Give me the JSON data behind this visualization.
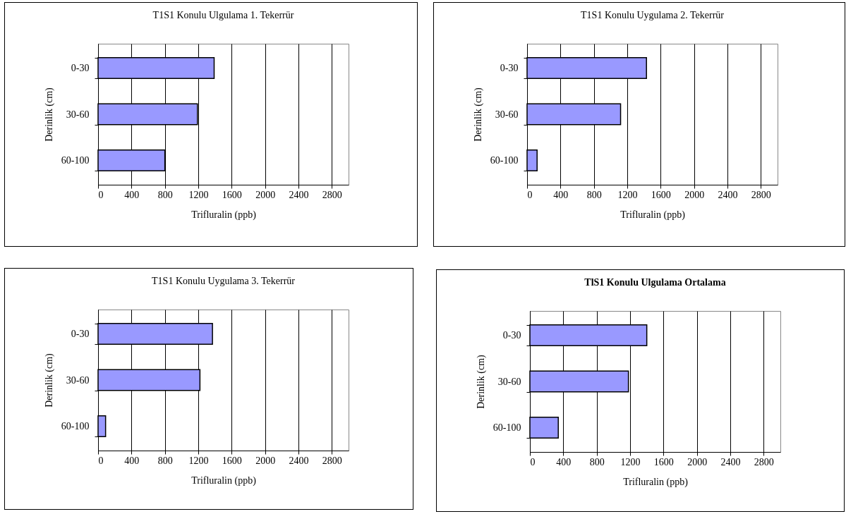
{
  "chart_data": [
    {
      "type": "bar",
      "orientation": "horizontal",
      "title": "T1S1 Konulu Ulgulama 1. Tekerrür",
      "xlabel": "Trifluralin (ppb)",
      "ylabel": "Derinlik (cm)",
      "categories": [
        "0-30",
        "30-60",
        "60-100"
      ],
      "values": [
        1390,
        1190,
        800
      ],
      "color": "#9999ff",
      "xlim": [
        0,
        3000
      ],
      "xticks": [
        0,
        400,
        800,
        1200,
        1600,
        2000,
        2400,
        2800
      ],
      "grid": "x"
    },
    {
      "type": "bar",
      "orientation": "horizontal",
      "title": "T1S1 Konulu Uygulama 2. Tekerrür",
      "xlabel": "Trifluralin (ppb)",
      "ylabel": "Derinlik (cm)",
      "categories": [
        "0-30",
        "30-60",
        "60-100"
      ],
      "values": [
        1430,
        1120,
        120
      ],
      "color": "#9999ff",
      "xlim": [
        0,
        3000
      ],
      "xticks": [
        0,
        400,
        800,
        1200,
        1600,
        2000,
        2400,
        2800
      ],
      "grid": "x"
    },
    {
      "type": "bar",
      "orientation": "horizontal",
      "title": "T1S1 Konulu Uygulama 3. Tekerrür",
      "xlabel": "Trifluralin (ppb)",
      "ylabel": "Derinlik (cm)",
      "categories": [
        "0-30",
        "30-60",
        "60-100"
      ],
      "values": [
        1370,
        1220,
        90
      ],
      "color": "#9999ff",
      "xlim": [
        0,
        3000
      ],
      "xticks": [
        0,
        400,
        800,
        1200,
        1600,
        2000,
        2400,
        2800
      ],
      "grid": "x"
    },
    {
      "type": "bar",
      "orientation": "horizontal",
      "title": "TlS1 Konulu Ulgulama Ortalama",
      "xlabel": "Trifluralin (ppb)",
      "ylabel": "Derinlik (cm)",
      "categories": [
        "0-30",
        "30-60",
        "60-100"
      ],
      "values": [
        1400,
        1180,
        340
      ],
      "color": "#9999ff",
      "xlim": [
        0,
        3000
      ],
      "xticks": [
        0,
        400,
        800,
        1200,
        1600,
        2000,
        2400,
        2800
      ],
      "grid": "x"
    }
  ]
}
